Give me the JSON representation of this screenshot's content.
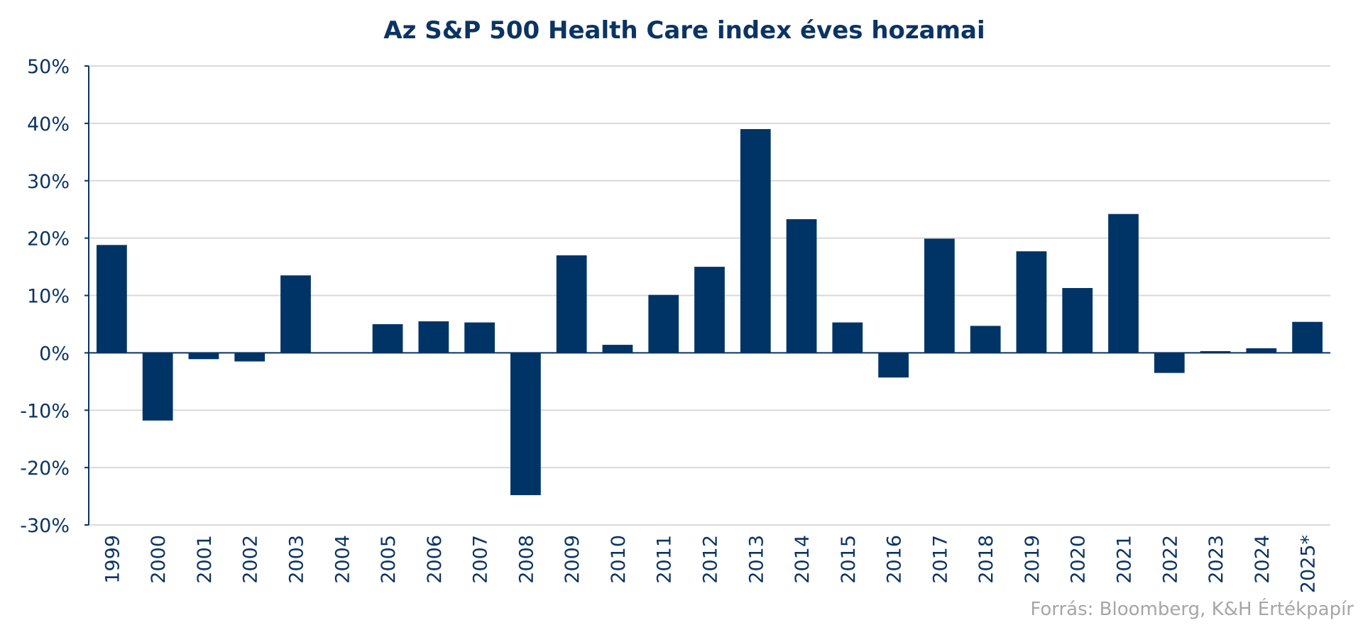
{
  "chart_data": {
    "type": "bar",
    "title": "Az S&P 500 Health Care index éves hozamai",
    "categories": [
      "1999",
      "2000",
      "2001",
      "2002",
      "2003",
      "2004",
      "2005",
      "2006",
      "2007",
      "2008",
      "2009",
      "2010",
      "2011",
      "2012",
      "2013",
      "2014",
      "2015",
      "2016",
      "2017",
      "2018",
      "2019",
      "2020",
      "2021",
      "2022",
      "2023",
      "2024",
      "2025*"
    ],
    "series": [
      {
        "values": [
          18.8,
          -11.8,
          -1.1,
          -1.5,
          13.5,
          0.0,
          5.0,
          5.5,
          5.3,
          -24.8,
          17.0,
          1.4,
          10.1,
          15.0,
          39.0,
          23.3,
          5.3,
          -4.3,
          19.9,
          4.7,
          17.7,
          11.3,
          24.2,
          -3.5,
          0.3,
          0.8,
          5.4
        ]
      }
    ],
    "xlabel": "",
    "ylabel": "",
    "ylim": [
      -30,
      50
    ],
    "yticks": [
      50,
      40,
      30,
      20,
      10,
      0,
      -10,
      -20,
      -30
    ],
    "ytick_labels": [
      "50%",
      "40%",
      "30%",
      "20%",
      "10%",
      "0%",
      "-10%",
      "-20%",
      "-30%"
    ],
    "grid": true,
    "legend": "none",
    "bar_color": "#003466",
    "grid_color": "#d9d9d9",
    "text_color": "#0b3463",
    "source_note": "Forrás: Bloomberg, K&H Értékpapír"
  }
}
